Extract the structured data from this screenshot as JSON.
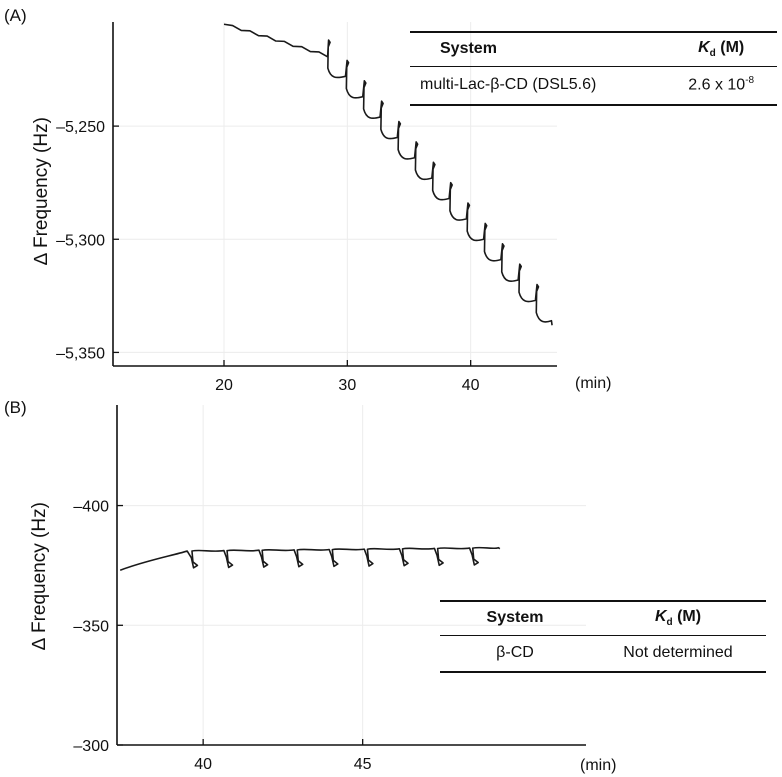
{
  "panels": [
    {
      "label": "(A)",
      "ylabel": "∆ Frequency (Hz)",
      "xunit": "(min)",
      "table": {
        "col1": "System",
        "col2_letter": "K",
        "col2_sub": "d",
        "col2_unit": "(M)",
        "row_system": "multi-Lac-β-CD (DSL5.6)",
        "row_kd_base": "2.6 x 10",
        "row_kd_exp": "-8"
      }
    },
    {
      "label": "(B)",
      "ylabel": "∆ Frequency (Hz)",
      "xunit": "(min)",
      "table": {
        "col1": "System",
        "col2_letter": "K",
        "col2_sub": "d",
        "col2_unit": "(M)",
        "row_system": "β-CD",
        "row_kd_text": "Not determined"
      }
    }
  ],
  "chart_data": [
    {
      "type": "line",
      "panel": "A",
      "xlabel": "(min)",
      "ylabel": "∆ Frequency (Hz)",
      "xlim": [
        11,
        47
      ],
      "ylim": [
        -5356,
        -5204
      ],
      "xticks": [
        20,
        30,
        40
      ],
      "xtick_labels": [
        "20",
        "30",
        "40"
      ],
      "yticks": [
        -5250,
        -5300,
        -5350
      ],
      "ytick_labels": [
        "–5,250",
        "–5,300",
        "–5,350"
      ],
      "series": [
        {
          "name": "multi-Lac-β-CD (DSL5.6)",
          "baseline": {
            "x": [
              20,
              28.4
            ],
            "y": [
              -5205,
              -5219
            ]
          },
          "injections": [
            28.4,
            29.9,
            31.3,
            32.7,
            34.1,
            35.5,
            36.9,
            38.3,
            39.7,
            41.1,
            42.5,
            43.9,
            45.3
          ],
          "step_drop": -9,
          "spike": 7,
          "end": {
            "x": 46.6,
            "y": -5338
          }
        }
      ]
    },
    {
      "type": "line",
      "panel": "B",
      "xlabel": "(min)",
      "ylabel": "∆ Frequency (Hz)",
      "xlim": [
        37.3,
        52
      ],
      "ylim": [
        -300,
        -442
      ],
      "xticks": [
        40,
        45
      ],
      "xtick_labels": [
        "40",
        "45"
      ],
      "yticks": [
        -400,
        -350,
        -300
      ],
      "ytick_labels": [
        "–400",
        "–350",
        "–300"
      ],
      "series": [
        {
          "name": "β-CD",
          "start": {
            "x": 37.4,
            "y": -373
          },
          "plateau": -381,
          "injections": [
            39.6,
            40.7,
            41.8,
            42.9,
            44.0,
            45.1,
            46.2,
            47.3,
            48.4
          ],
          "spike": 7,
          "end": {
            "x": 49.3,
            "y": -382
          }
        }
      ]
    }
  ]
}
